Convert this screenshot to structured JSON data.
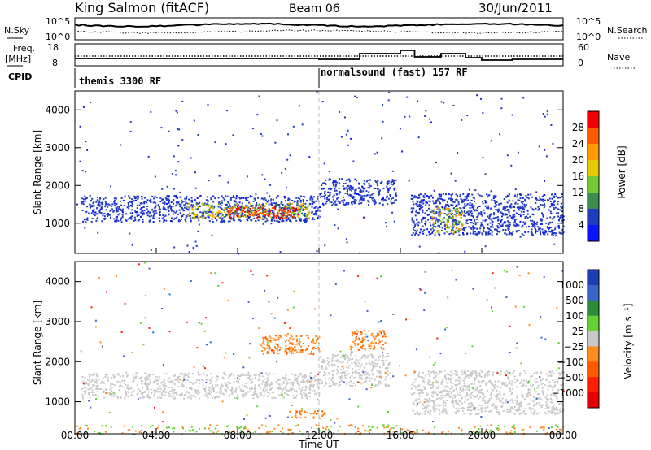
{
  "header": {
    "title": "King Salmon (fitACF)",
    "beam": "Beam 06",
    "date": "30/Jun/2011"
  },
  "noise_panel": {
    "left_label": "N.Sky",
    "right_label": "N.Search",
    "left_ticks": [
      "10^5",
      "10^0"
    ],
    "right_ticks": [
      "10^5",
      "10^0"
    ]
  },
  "freq_panel": {
    "left_label_line1": "Freq.",
    "left_label_line2": "[MHz]",
    "right_label": "Nave",
    "left_ticks": [
      "18",
      "8"
    ],
    "right_ticks": [
      "60",
      "0"
    ]
  },
  "cpid": {
    "label": "CPID",
    "segments": [
      {
        "text": "themis 3300 RF",
        "start_hour": 0
      },
      {
        "text": "normalsound (fast) 157 RF",
        "start_hour": 12
      }
    ]
  },
  "panels": {
    "power": {
      "ylabel": "Slant Range [km]",
      "yticks": [
        "1000",
        "2000",
        "3000",
        "4000"
      ],
      "colorbar_label": "Power [dB]",
      "colorbar_ticks": [
        "28",
        "24",
        "20",
        "16",
        "12",
        "8",
        "4"
      ],
      "colors": [
        "#f00000",
        "#ff5a00",
        "#ff9a00",
        "#e8c800",
        "#78c832",
        "#3c8c50",
        "#1f3cbe",
        "#0a14ff"
      ]
    },
    "velocity": {
      "ylabel": "Slant Range [km]",
      "yticks": [
        "1000",
        "2000",
        "3000",
        "4000"
      ],
      "colorbar_label": "Velocity [m s⁻¹]",
      "colorbar_ticks": [
        "1000",
        "500",
        "100",
        "25",
        "−25",
        "−100",
        "−500",
        "−1000"
      ],
      "colors": [
        "#1e3cb4",
        "#3c64c8",
        "#2d8c3c",
        "#64d232",
        "#c8c8c8",
        "#ff8c1e",
        "#ff5a00",
        "#ff1e00",
        "#e60000"
      ]
    }
  },
  "xaxis": {
    "label": "Time UT",
    "ticks": [
      "00:00",
      "04:00",
      "08:00",
      "12:00",
      "16:00",
      "20:00",
      "00:00"
    ]
  },
  "chart_data": [
    {
      "type": "heatmap",
      "title": "Power",
      "x_range_hours": [
        0,
        24
      ],
      "y_range_km": [
        200,
        4500
      ],
      "colorbar_range_db": [
        0,
        32
      ],
      "regions": [
        {
          "t0": 0.3,
          "t1": 12.0,
          "r0": 1050,
          "r1": 1750,
          "level": "low"
        },
        {
          "t0": 5.5,
          "t1": 11.5,
          "r0": 1150,
          "r1": 1550,
          "level": "medium"
        },
        {
          "t0": 7.5,
          "t1": 11.0,
          "r0": 1150,
          "r1": 1450,
          "level": "high"
        },
        {
          "t0": 12.0,
          "t1": 15.8,
          "r0": 1500,
          "r1": 2200,
          "level": "low"
        },
        {
          "t0": 16.5,
          "t1": 24.0,
          "r0": 700,
          "r1": 1800,
          "level": "low"
        },
        {
          "t0": 17.5,
          "t1": 19.0,
          "r0": 750,
          "r1": 1450,
          "level": "medium"
        }
      ]
    },
    {
      "type": "heatmap",
      "title": "Velocity",
      "x_range_hours": [
        0,
        24
      ],
      "y_range_km": [
        200,
        4500
      ],
      "colorbar_range_ms": [
        -1000,
        1000
      ],
      "regions": [
        {
          "t0": 0.3,
          "t1": 12.0,
          "r0": 1100,
          "r1": 1750,
          "level": "ground"
        },
        {
          "t0": 12.0,
          "t1": 15.5,
          "r0": 1400,
          "r1": 2200,
          "level": "ground"
        },
        {
          "t0": 16.5,
          "t1": 24.0,
          "r0": 700,
          "r1": 1800,
          "level": "ground"
        },
        {
          "t0": 9.0,
          "t1": 12.0,
          "r0": 2200,
          "r1": 2700,
          "level": "away"
        },
        {
          "t0": 13.5,
          "t1": 15.3,
          "r0": 2300,
          "r1": 2800,
          "level": "away"
        },
        {
          "t0": 10.5,
          "t1": 12.3,
          "r0": 600,
          "r1": 800,
          "level": "away"
        }
      ]
    }
  ]
}
